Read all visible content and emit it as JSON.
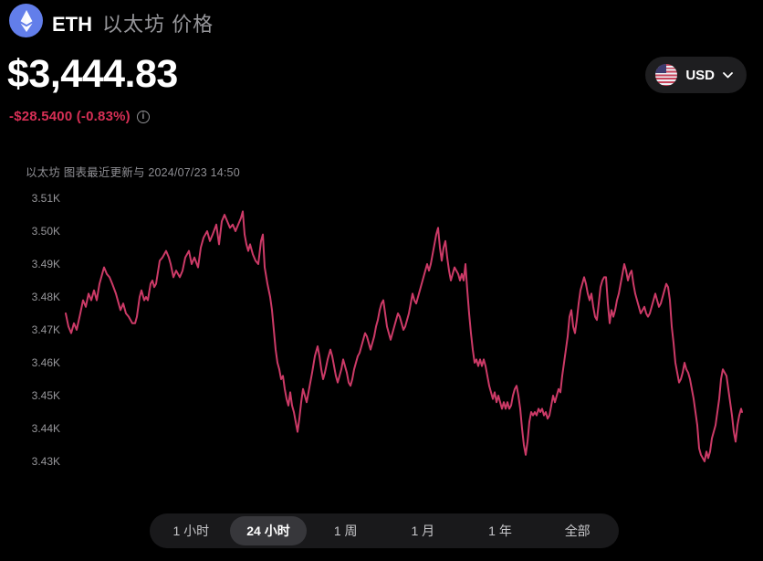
{
  "header": {
    "coin_symbol": "ETH",
    "coin_name_cn": "以太坊 价格",
    "price": "$3,444.83",
    "change": "-$28.5400 (-0.83%)",
    "currency_selector": {
      "label": "USD",
      "flag_icon": "us-flag-icon",
      "chevron_icon": "chevron-down-icon"
    }
  },
  "chart": {
    "subtitle": "以太坊 图表最近更新与 2024/07/23 14:50",
    "line_color": "#cc3a67",
    "y_axis": {
      "ticks": [
        "3.51K",
        "3.50K",
        "3.49K",
        "3.48K",
        "3.47K",
        "3.46K",
        "3.45K",
        "3.44K",
        "3.43K"
      ]
    }
  },
  "chart_data": {
    "type": "line",
    "title": "ETH 以太坊 价格 (24 小时)",
    "y_unit": "USD",
    "ylim": [
      3430,
      3510
    ],
    "y_tick_values": [
      3510,
      3500,
      3490,
      3480,
      3470,
      3460,
      3450,
      3440,
      3430
    ],
    "x_note": "24-hour window ending 2024/07/23 14:50, x = horizontal position (no x tick labels shown)",
    "current_price": 3444.83,
    "change_abs": -28.54,
    "change_pct": -0.83,
    "grid": false,
    "legend": false,
    "points": [
      [
        72,
        3475
      ],
      [
        75,
        3471
      ],
      [
        78,
        3469
      ],
      [
        81,
        3472
      ],
      [
        84,
        3470
      ],
      [
        88,
        3475
      ],
      [
        91,
        3479
      ],
      [
        94,
        3477
      ],
      [
        97,
        3481
      ],
      [
        100,
        3479
      ],
      [
        103,
        3482
      ],
      [
        106,
        3479
      ],
      [
        109,
        3484
      ],
      [
        112,
        3487
      ],
      [
        114,
        3489
      ],
      [
        117,
        3487
      ],
      [
        120,
        3486
      ],
      [
        123,
        3484
      ],
      [
        127,
        3481
      ],
      [
        130,
        3478
      ],
      [
        132,
        3476
      ],
      [
        135,
        3478
      ],
      [
        138,
        3475
      ],
      [
        141,
        3474
      ],
      [
        145,
        3472
      ],
      [
        148,
        3472
      ],
      [
        150,
        3474
      ],
      [
        153,
        3480
      ],
      [
        155,
        3482
      ],
      [
        158,
        3479
      ],
      [
        160,
        3480
      ],
      [
        162,
        3479
      ],
      [
        165,
        3484
      ],
      [
        167,
        3485
      ],
      [
        169,
        3483
      ],
      [
        171,
        3484
      ],
      [
        175,
        3491
      ],
      [
        178,
        3492
      ],
      [
        182,
        3494
      ],
      [
        185,
        3492
      ],
      [
        187,
        3490
      ],
      [
        190,
        3486
      ],
      [
        193,
        3488
      ],
      [
        197,
        3486
      ],
      [
        200,
        3488
      ],
      [
        203,
        3492
      ],
      [
        207,
        3494
      ],
      [
        210,
        3490
      ],
      [
        213,
        3492
      ],
      [
        217,
        3489
      ],
      [
        220,
        3495
      ],
      [
        223,
        3498
      ],
      [
        227,
        3500
      ],
      [
        230,
        3497
      ],
      [
        233,
        3499
      ],
      [
        237,
        3502
      ],
      [
        240,
        3496
      ],
      [
        243,
        3503
      ],
      [
        246,
        3505
      ],
      [
        249,
        3503
      ],
      [
        252,
        3501
      ],
      [
        255,
        3502
      ],
      [
        258,
        3500
      ],
      [
        261,
        3502
      ],
      [
        264,
        3504
      ],
      [
        266,
        3506
      ],
      [
        268,
        3499
      ],
      [
        270,
        3496
      ],
      [
        272,
        3494
      ],
      [
        274,
        3496
      ],
      [
        277,
        3493
      ],
      [
        280,
        3491
      ],
      [
        283,
        3490
      ],
      [
        286,
        3497
      ],
      [
        288,
        3499
      ],
      [
        290,
        3489
      ],
      [
        293,
        3484
      ],
      [
        296,
        3480
      ],
      [
        298,
        3476
      ],
      [
        300,
        3470
      ],
      [
        302,
        3464
      ],
      [
        304,
        3460
      ],
      [
        306,
        3458
      ],
      [
        308,
        3455
      ],
      [
        310,
        3456
      ],
      [
        312,
        3452
      ],
      [
        314,
        3449
      ],
      [
        316,
        3447
      ],
      [
        318,
        3451
      ],
      [
        320,
        3447
      ],
      [
        322,
        3445
      ],
      [
        324,
        3442
      ],
      [
        326,
        3439
      ],
      [
        328,
        3443
      ],
      [
        330,
        3448
      ],
      [
        332,
        3452
      ],
      [
        334,
        3450
      ],
      [
        336,
        3448
      ],
      [
        338,
        3451
      ],
      [
        340,
        3454
      ],
      [
        342,
        3457
      ],
      [
        345,
        3462
      ],
      [
        348,
        3465
      ],
      [
        350,
        3462
      ],
      [
        352,
        3458
      ],
      [
        354,
        3455
      ],
      [
        356,
        3457
      ],
      [
        359,
        3461
      ],
      [
        362,
        3464
      ],
      [
        364,
        3462
      ],
      [
        366,
        3459
      ],
      [
        368,
        3456
      ],
      [
        370,
        3454
      ],
      [
        372,
        3456
      ],
      [
        374,
        3458
      ],
      [
        376,
        3461
      ],
      [
        378,
        3459
      ],
      [
        380,
        3457
      ],
      [
        382,
        3454
      ],
      [
        384,
        3453
      ],
      [
        386,
        3455
      ],
      [
        388,
        3458
      ],
      [
        390,
        3460
      ],
      [
        392,
        3462
      ],
      [
        394,
        3463
      ],
      [
        396,
        3465
      ],
      [
        398,
        3467
      ],
      [
        400,
        3469
      ],
      [
        402,
        3468
      ],
      [
        404,
        3466
      ],
      [
        406,
        3464
      ],
      [
        408,
        3466
      ],
      [
        410,
        3468
      ],
      [
        412,
        3471
      ],
      [
        414,
        3473
      ],
      [
        416,
        3476
      ],
      [
        418,
        3478
      ],
      [
        420,
        3479
      ],
      [
        422,
        3475
      ],
      [
        424,
        3471
      ],
      [
        426,
        3469
      ],
      [
        428,
        3467
      ],
      [
        430,
        3469
      ],
      [
        432,
        3471
      ],
      [
        434,
        3473
      ],
      [
        436,
        3475
      ],
      [
        438,
        3474
      ],
      [
        440,
        3472
      ],
      [
        442,
        3470
      ],
      [
        444,
        3471
      ],
      [
        446,
        3473
      ],
      [
        448,
        3475
      ],
      [
        450,
        3478
      ],
      [
        452,
        3481
      ],
      [
        454,
        3479
      ],
      [
        456,
        3478
      ],
      [
        458,
        3480
      ],
      [
        460,
        3482
      ],
      [
        462,
        3484
      ],
      [
        464,
        3486
      ],
      [
        466,
        3488
      ],
      [
        468,
        3490
      ],
      [
        470,
        3488
      ],
      [
        472,
        3490
      ],
      [
        474,
        3493
      ],
      [
        476,
        3496
      ],
      [
        478,
        3499
      ],
      [
        480,
        3501
      ],
      [
        482,
        3495
      ],
      [
        484,
        3491
      ],
      [
        486,
        3495
      ],
      [
        488,
        3497
      ],
      [
        490,
        3492
      ],
      [
        492,
        3488
      ],
      [
        494,
        3485
      ],
      [
        496,
        3487
      ],
      [
        498,
        3489
      ],
      [
        500,
        3488
      ],
      [
        502,
        3487
      ],
      [
        504,
        3485
      ],
      [
        506,
        3487
      ],
      [
        508,
        3485
      ],
      [
        510,
        3490
      ],
      [
        512,
        3482
      ],
      [
        514,
        3475
      ],
      [
        516,
        3469
      ],
      [
        518,
        3464
      ],
      [
        520,
        3460
      ],
      [
        522,
        3461
      ],
      [
        524,
        3459
      ],
      [
        526,
        3461
      ],
      [
        528,
        3459
      ],
      [
        530,
        3461
      ],
      [
        532,
        3459
      ],
      [
        534,
        3456
      ],
      [
        536,
        3453
      ],
      [
        538,
        3451
      ],
      [
        540,
        3449
      ],
      [
        542,
        3451
      ],
      [
        544,
        3448
      ],
      [
        546,
        3450
      ],
      [
        548,
        3448
      ],
      [
        550,
        3446
      ],
      [
        552,
        3448
      ],
      [
        554,
        3446
      ],
      [
        556,
        3448
      ],
      [
        558,
        3446
      ],
      [
        560,
        3447
      ],
      [
        562,
        3450
      ],
      [
        564,
        3452
      ],
      [
        566,
        3453
      ],
      [
        568,
        3450
      ],
      [
        570,
        3446
      ],
      [
        572,
        3440
      ],
      [
        574,
        3435
      ],
      [
        576,
        3432
      ],
      [
        578,
        3436
      ],
      [
        580,
        3442
      ],
      [
        582,
        3445
      ],
      [
        584,
        3444
      ],
      [
        586,
        3445
      ],
      [
        588,
        3444
      ],
      [
        590,
        3446
      ],
      [
        592,
        3445
      ],
      [
        594,
        3446
      ],
      [
        596,
        3444
      ],
      [
        598,
        3445
      ],
      [
        600,
        3443
      ],
      [
        602,
        3444
      ],
      [
        604,
        3447
      ],
      [
        606,
        3450
      ],
      [
        608,
        3448
      ],
      [
        610,
        3450
      ],
      [
        612,
        3452
      ],
      [
        614,
        3451
      ],
      [
        616,
        3456
      ],
      [
        618,
        3460
      ],
      [
        620,
        3464
      ],
      [
        622,
        3468
      ],
      [
        624,
        3474
      ],
      [
        626,
        3476
      ],
      [
        628,
        3471
      ],
      [
        630,
        3469
      ],
      [
        632,
        3473
      ],
      [
        634,
        3478
      ],
      [
        636,
        3482
      ],
      [
        638,
        3484
      ],
      [
        640,
        3486
      ],
      [
        642,
        3484
      ],
      [
        644,
        3481
      ],
      [
        646,
        3479
      ],
      [
        648,
        3481
      ],
      [
        650,
        3477
      ],
      [
        652,
        3474
      ],
      [
        654,
        3473
      ],
      [
        656,
        3478
      ],
      [
        658,
        3483
      ],
      [
        660,
        3485
      ],
      [
        662,
        3486
      ],
      [
        664,
        3486
      ],
      [
        666,
        3478
      ],
      [
        668,
        3472
      ],
      [
        670,
        3476
      ],
      [
        672,
        3474
      ],
      [
        674,
        3476
      ],
      [
        676,
        3479
      ],
      [
        678,
        3481
      ],
      [
        680,
        3484
      ],
      [
        682,
        3487
      ],
      [
        684,
        3490
      ],
      [
        686,
        3488
      ],
      [
        688,
        3485
      ],
      [
        690,
        3487
      ],
      [
        692,
        3488
      ],
      [
        694,
        3484
      ],
      [
        696,
        3481
      ],
      [
        698,
        3479
      ],
      [
        700,
        3477
      ],
      [
        702,
        3475
      ],
      [
        704,
        3476
      ],
      [
        706,
        3477
      ],
      [
        708,
        3475
      ],
      [
        710,
        3474
      ],
      [
        712,
        3475
      ],
      [
        714,
        3477
      ],
      [
        716,
        3479
      ],
      [
        718,
        3481
      ],
      [
        720,
        3479
      ],
      [
        722,
        3477
      ],
      [
        724,
        3478
      ],
      [
        726,
        3480
      ],
      [
        728,
        3482
      ],
      [
        730,
        3484
      ],
      [
        732,
        3483
      ],
      [
        734,
        3479
      ],
      [
        736,
        3471
      ],
      [
        738,
        3466
      ],
      [
        740,
        3460
      ],
      [
        742,
        3457
      ],
      [
        744,
        3454
      ],
      [
        746,
        3455
      ],
      [
        748,
        3457
      ],
      [
        750,
        3460
      ],
      [
        752,
        3458
      ],
      [
        754,
        3457
      ],
      [
        756,
        3455
      ],
      [
        758,
        3452
      ],
      [
        760,
        3449
      ],
      [
        762,
        3445
      ],
      [
        764,
        3441
      ],
      [
        766,
        3434
      ],
      [
        768,
        3432
      ],
      [
        770,
        3431
      ],
      [
        772,
        3430
      ],
      [
        774,
        3433
      ],
      [
        776,
        3431
      ],
      [
        778,
        3433
      ],
      [
        780,
        3437
      ],
      [
        782,
        3439
      ],
      [
        784,
        3441
      ],
      [
        786,
        3445
      ],
      [
        788,
        3449
      ],
      [
        790,
        3455
      ],
      [
        792,
        3458
      ],
      [
        794,
        3457
      ],
      [
        796,
        3456
      ],
      [
        798,
        3452
      ],
      [
        800,
        3448
      ],
      [
        802,
        3444
      ],
      [
        804,
        3439
      ],
      [
        806,
        3436
      ],
      [
        808,
        3441
      ],
      [
        810,
        3444
      ],
      [
        812,
        3446
      ],
      [
        813,
        3445
      ]
    ]
  },
  "timeframe_tabs": [
    {
      "id": "tab-1h",
      "label": "1 小时",
      "selected": false
    },
    {
      "id": "tab-24h",
      "label": "24 小时",
      "selected": true
    },
    {
      "id": "tab-1w",
      "label": "1 周",
      "selected": false
    },
    {
      "id": "tab-1m",
      "label": "1 月",
      "selected": false
    },
    {
      "id": "tab-1y",
      "label": "1 年",
      "selected": false
    },
    {
      "id": "tab-all",
      "label": "全部",
      "selected": false
    }
  ]
}
